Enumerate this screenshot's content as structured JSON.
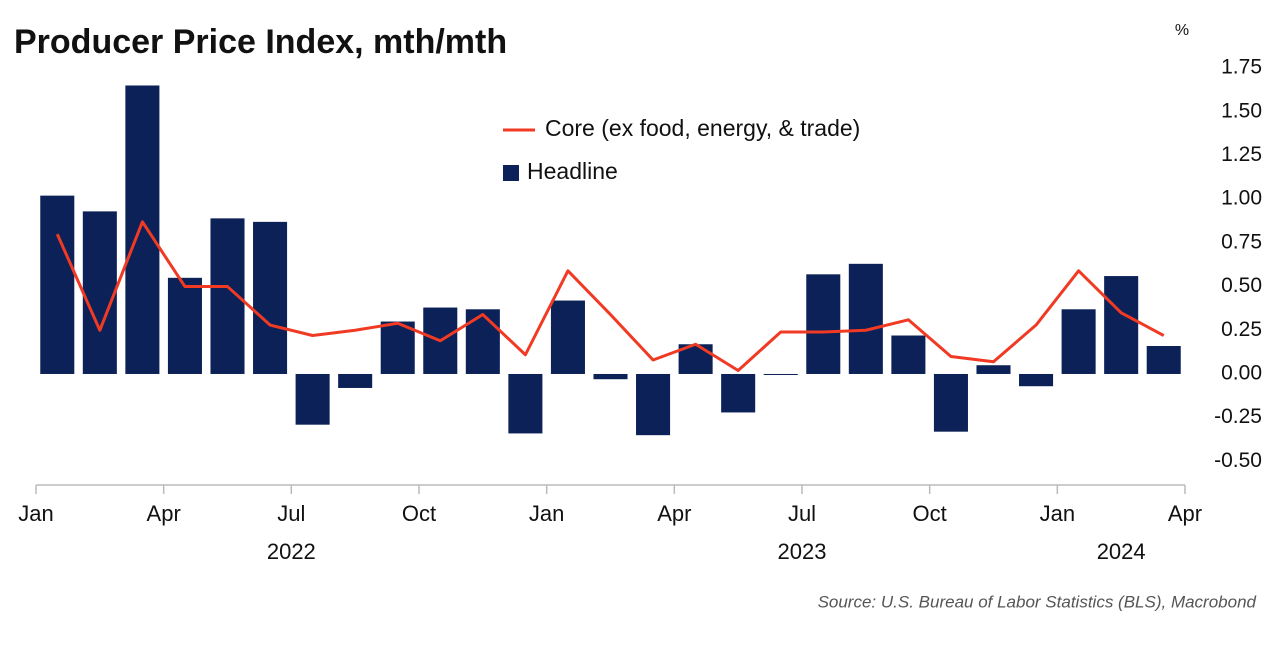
{
  "chart_data": {
    "type": "bar_line",
    "title": "Producer Price Index, mth/mth",
    "y_unit": "%",
    "source": "Source: U.S. Bureau of Labor Statistics (BLS), Macrobond",
    "xlim": [
      0,
      27
    ],
    "xticks": [
      {
        "value": 0,
        "label": "Jan"
      },
      {
        "value": 3,
        "label": "Apr"
      },
      {
        "value": 6,
        "label": "Jul"
      },
      {
        "value": 9,
        "label": "Oct"
      },
      {
        "value": 12,
        "label": "Jan"
      },
      {
        "value": 15,
        "label": "Apr"
      },
      {
        "value": 18,
        "label": "Jul"
      },
      {
        "value": 21,
        "label": "Oct"
      },
      {
        "value": 24,
        "label": "Jan"
      },
      {
        "value": 27,
        "label": "Apr"
      }
    ],
    "years": [
      {
        "label": "2022",
        "start": 0,
        "end": 12
      },
      {
        "label": "2023",
        "start": 12,
        "end": 24
      },
      {
        "label": "2024",
        "start": 24,
        "end": 27
      }
    ],
    "ylim": [
      -0.5,
      1.75
    ],
    "yticks": [
      {
        "value": 1.75,
        "label": "1.75"
      },
      {
        "value": 1.5,
        "label": "1.50"
      },
      {
        "value": 1.25,
        "label": "1.25"
      },
      {
        "value": 1,
        "label": "1.00"
      },
      {
        "value": 0.75,
        "label": "0.75"
      },
      {
        "value": 0.5,
        "label": "0.50"
      },
      {
        "value": 0.25,
        "label": "0.25"
      },
      {
        "value": 0,
        "label": "0.00"
      },
      {
        "value": -0.25,
        "label": "-0.25"
      },
      {
        "value": -0.5,
        "label": "-0.50"
      }
    ],
    "grid": false,
    "series": [
      {
        "name": "Core (ex food, energy, & trade)",
        "type": "line",
        "color": "#f03a24",
        "values": [
          0.8,
          0.25,
          0.87,
          0.5,
          0.5,
          0.28,
          0.22,
          0.25,
          0.29,
          0.19,
          0.34,
          0.11,
          0.59,
          0.34,
          0.08,
          0.17,
          0.02,
          0.24,
          0.24,
          0.25,
          0.31,
          0.1,
          0.07,
          0.28,
          0.59,
          0.35,
          0.22
        ]
      },
      {
        "name": "Headline",
        "type": "bar",
        "color": "#0c2157",
        "values": [
          1.02,
          0.93,
          1.65,
          0.55,
          0.89,
          0.87,
          -0.29,
          -0.08,
          0.3,
          0.38,
          0.37,
          -0.34,
          0.42,
          -0.03,
          -0.35,
          0.17,
          -0.22,
          0.0,
          0.57,
          0.63,
          0.22,
          -0.33,
          0.05,
          -0.07,
          0.37,
          0.56,
          0.16
        ]
      }
    ]
  }
}
